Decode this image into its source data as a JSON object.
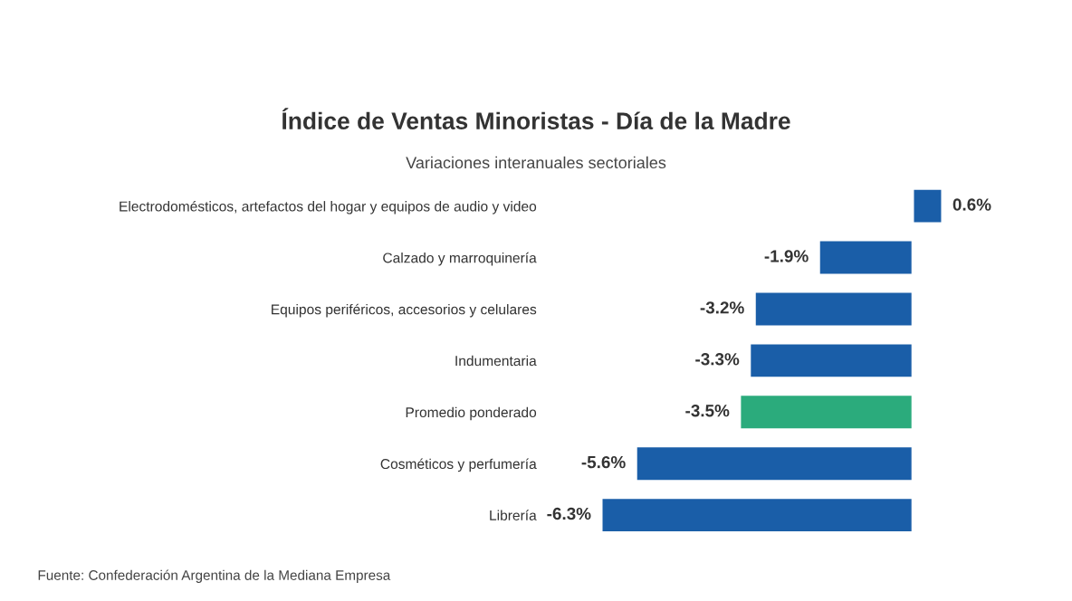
{
  "chart_data": {
    "type": "bar",
    "orientation": "horizontal",
    "title": "Índice de Ventas Minoristas - Día de la Madre",
    "subtitle": "Variaciones interanuales sectoriales",
    "categories": [
      "Electrodomésticos, artefactos del hogar y equipos de audio y video",
      "Calzado y marroquinería",
      "Equipos periféricos, accesorios y celulares",
      "Indumentaria",
      "Promedio ponderado",
      "Cosméticos y perfumería",
      "Librería"
    ],
    "values": [
      0.6,
      -1.9,
      -3.2,
      -3.3,
      -3.5,
      -5.6,
      -6.3
    ],
    "colors": [
      "#1a5ea8",
      "#1a5ea8",
      "#1a5ea8",
      "#1a5ea8",
      "#2bab7c",
      "#1a5ea8",
      "#1a5ea8"
    ],
    "value_labels": [
      "0.6%",
      "-1.9%",
      "-3.2%",
      "-3.3%",
      "-3.5%",
      "-5.6%",
      "-6.3%"
    ],
    "grid": false,
    "legend": false,
    "annotations": [
      "Fuente: Confederación Argentina de la Mediana Empresa"
    ]
  }
}
